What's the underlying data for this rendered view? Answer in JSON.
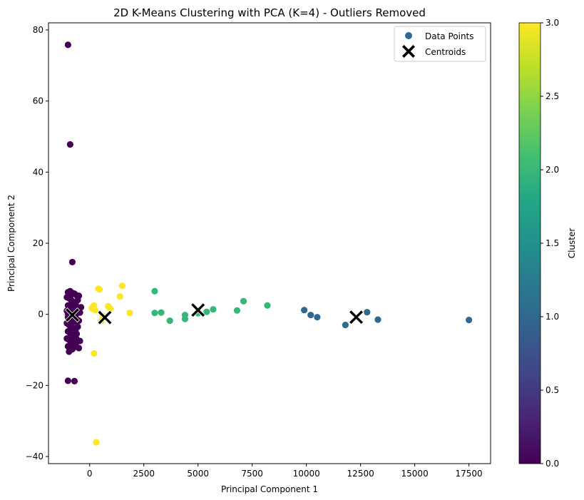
{
  "chart_data": {
    "type": "scatter",
    "title": "2D K-Means Clustering with PCA (K=4) - Outliers Removed",
    "xlabel": "Principal Component 1",
    "ylabel": "Principal Component 2",
    "xlim": [
      -1900,
      18500
    ],
    "ylim": [
      -42,
      82
    ],
    "xticks": [
      0,
      2500,
      5000,
      7500,
      10000,
      12500,
      15000,
      17500
    ],
    "xtick_labels": [
      "0",
      "2500",
      "5000",
      "7500",
      "10000",
      "12500",
      "15000",
      "17500"
    ],
    "yticks": [
      -40,
      -20,
      0,
      20,
      40,
      60,
      80
    ],
    "ytick_labels": [
      "−40",
      "−20",
      "0",
      "20",
      "40",
      "60",
      "80"
    ],
    "grid": false,
    "legend": {
      "placement": "top-right",
      "entries": [
        {
          "label": "Data Points",
          "marker": "circle",
          "color": "#31688e"
        },
        {
          "label": "Centroids",
          "marker": "X",
          "color": "#000000"
        }
      ]
    },
    "colorbar": {
      "label": "Cluster",
      "colormap": "viridis",
      "range": [
        0,
        3
      ],
      "ticks": [
        0,
        0.5,
        1,
        1.5,
        2,
        2.5,
        3
      ],
      "tick_labels": [
        "0.0",
        "0.5",
        "1.0",
        "1.5",
        "2.0",
        "2.5",
        "3.0"
      ]
    },
    "colors": {
      "cluster_0": "#440154",
      "cluster_1": "#31688e",
      "cluster_2": "#35b779",
      "cluster_3": "#fde725",
      "centroid": "#000000"
    },
    "series": [
      {
        "cluster": 0,
        "points": [
          [
            -1000,
            75.8
          ],
          [
            -900,
            47.8
          ],
          [
            -800,
            14.7
          ],
          [
            -1000,
            -18.7
          ],
          [
            -700,
            -18.8
          ],
          [
            -1000,
            6.2
          ],
          [
            -900,
            6.5
          ],
          [
            -800,
            6.0
          ],
          [
            -700,
            5.8
          ],
          [
            -600,
            5.3
          ],
          [
            -1050,
            4.8
          ],
          [
            -950,
            4.5
          ],
          [
            -850,
            4.0
          ],
          [
            -750,
            3.5
          ],
          [
            -650,
            3.2
          ],
          [
            -1000,
            2.5
          ],
          [
            -900,
            2.0
          ],
          [
            -800,
            1.6
          ],
          [
            -700,
            1.2
          ],
          [
            -600,
            2.2
          ],
          [
            -1050,
            1.0
          ],
          [
            -950,
            0.6
          ],
          [
            -850,
            0.3
          ],
          [
            -750,
            0.0
          ],
          [
            -650,
            -0.3
          ],
          [
            -1000,
            -0.8
          ],
          [
            -900,
            -1.2
          ],
          [
            -800,
            -1.6
          ],
          [
            -700,
            -2.0
          ],
          [
            -600,
            -1.5
          ],
          [
            -1050,
            -2.5
          ],
          [
            -950,
            -3.0
          ],
          [
            -850,
            -3.4
          ],
          [
            -750,
            -3.8
          ],
          [
            -650,
            -4.2
          ],
          [
            -1000,
            -4.8
          ],
          [
            -900,
            -5.3
          ],
          [
            -800,
            -5.7
          ],
          [
            -700,
            -6.2
          ],
          [
            -600,
            -5.5
          ],
          [
            -1050,
            -6.8
          ],
          [
            -950,
            -7.2
          ],
          [
            -850,
            -7.6
          ],
          [
            -750,
            -8.0
          ],
          [
            -650,
            -8.5
          ],
          [
            -1000,
            -9.0
          ],
          [
            -900,
            -9.5
          ],
          [
            -800,
            -9.8
          ],
          [
            -700,
            -9.2
          ],
          [
            -950,
            -10.5
          ],
          [
            -500,
            5.2
          ],
          [
            -450,
            0.5
          ],
          [
            -500,
            -1.8
          ],
          [
            -450,
            -7.5
          ],
          [
            -500,
            -9.5
          ],
          [
            -550,
            4.0
          ],
          [
            -550,
            -3.5
          ],
          [
            -400,
            2.0
          ],
          [
            -600,
            -7.0
          ],
          [
            -850,
            5.5
          ],
          [
            -1000,
            0.2
          ],
          [
            -900,
            -0.2
          ],
          [
            -800,
            0.4
          ],
          [
            -700,
            -0.5
          ],
          [
            -750,
            1.8
          ]
        ]
      },
      {
        "cluster": 1,
        "points": [
          [
            9900,
            1.2
          ],
          [
            10200,
            -0.2
          ],
          [
            10500,
            -0.8
          ],
          [
            11800,
            -3.0
          ],
          [
            12800,
            0.6
          ],
          [
            13300,
            -1.5
          ],
          [
            17500,
            -1.6
          ]
        ]
      },
      {
        "cluster": 2,
        "points": [
          [
            3000,
            6.5
          ],
          [
            3000,
            0.4
          ],
          [
            3300,
            0.5
          ],
          [
            3700,
            -1.8
          ],
          [
            4400,
            -0.2
          ],
          [
            4400,
            -1.3
          ],
          [
            5000,
            0.3
          ],
          [
            5400,
            0.7
          ],
          [
            5700,
            1.4
          ],
          [
            6800,
            1.1
          ],
          [
            7100,
            3.7
          ],
          [
            8200,
            2.5
          ]
        ]
      },
      {
        "cluster": 3,
        "points": [
          [
            100,
            1.8
          ],
          [
            200,
            2.5
          ],
          [
            150,
            1.5
          ],
          [
            400,
            7.2
          ],
          [
            450,
            7.0
          ],
          [
            850,
            2.3
          ],
          [
            950,
            1.6
          ],
          [
            1400,
            5.0
          ],
          [
            1500,
            8.0
          ],
          [
            1850,
            0.4
          ],
          [
            250,
            1.2
          ],
          [
            200,
            -11.0
          ],
          [
            600,
            -0.4
          ],
          [
            550,
            -1.8
          ],
          [
            300,
            -36.0
          ]
        ]
      }
    ],
    "centroids": [
      [
        -800,
        -0.2
      ],
      [
        12300,
        -0.8
      ],
      [
        5000,
        1.2
      ],
      [
        700,
        -0.9
      ]
    ]
  }
}
